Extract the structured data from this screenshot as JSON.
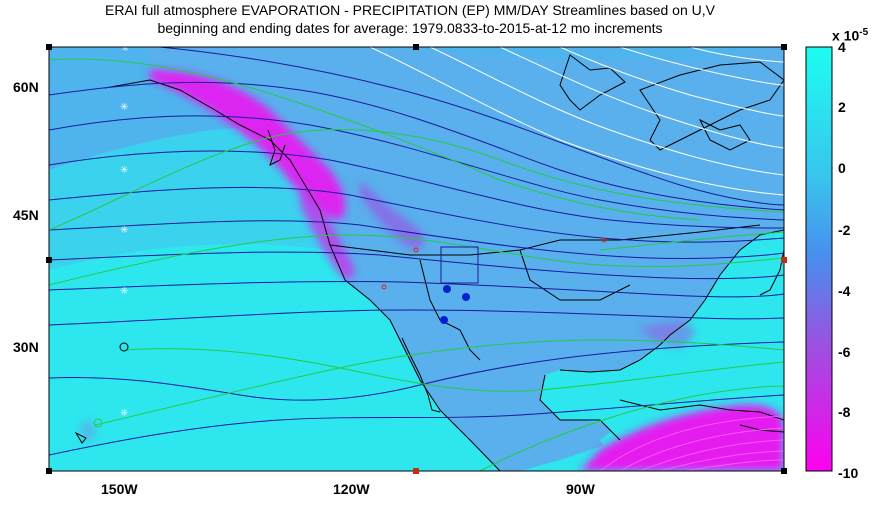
{
  "title": {
    "line1": "ERAI full atmosphere  EVAPORATION - PRECIPITATION (EP)   MM/DAY   Streamlines based on U,V",
    "line2": "beginning and ending dates for average:  1979.0833-to-2015-at-12 mo increments"
  },
  "map": {
    "lat_labels": [
      "60N",
      "45N",
      "30N"
    ],
    "lon_labels": [
      "150W",
      "120W",
      "90W"
    ]
  },
  "colorbar": {
    "multiplier_base": "x 10",
    "multiplier_exp": "-5",
    "ticks": [
      "4",
      "2",
      "0",
      "-2",
      "-4",
      "-6",
      "-8",
      "-10"
    ],
    "colors": {
      "top": "#1dfdf0",
      "mid": "#4a8dee",
      "low": "#9a52e0",
      "bottom": "#ff00f0"
    }
  },
  "style": {
    "ocean": "#2ee6ee",
    "land": "#59b0ec",
    "dry": "#e41df0",
    "streamline_dark": "#1a1a9a",
    "streamline_green": "#22cc44",
    "streamline_white": "#ffffff"
  }
}
